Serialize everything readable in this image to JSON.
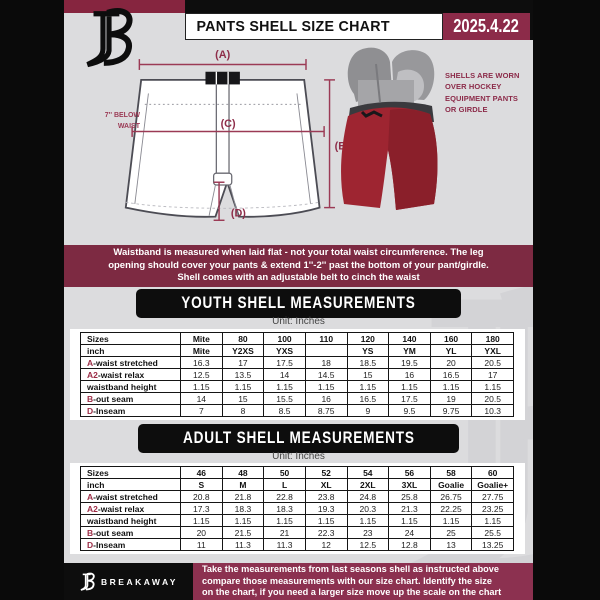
{
  "header": {
    "title": "PANTS SHELL SIZE CHART",
    "date": "2025.4.22"
  },
  "diagram": {
    "labels": {
      "a": "(A)",
      "b": "(B)",
      "c": "(C)",
      "d": "(D)"
    },
    "side_note_lines": [
      "7'' BELOW",
      "WAIST"
    ],
    "photo_note_lines": [
      "SHELLS ARE WORN",
      "OVER HOCKEY",
      "EQUIPMENT PANTS",
      "OR GIRDLE"
    ]
  },
  "notice": {
    "lines": [
      "Waistband is measured when laid flat - not your total waist circumference. The leg",
      "opening should cover your pants & extend 1''-2'' past the bottom of your pant/girdle.",
      "Shell comes with an adjustable belt to cinch the waist"
    ]
  },
  "youth": {
    "heading": "YOUTH SHELL MEASUREMENTS",
    "unit": "Unit: Inches",
    "table": {
      "rows": [
        {
          "label": {
            "prefix": "",
            "text": "Sizes"
          },
          "bold": true,
          "cells": [
            "Mite",
            "80",
            "100",
            "110",
            "120",
            "140",
            "160",
            "180"
          ]
        },
        {
          "label": {
            "prefix": "",
            "text": "inch"
          },
          "bold": true,
          "cells": [
            "Mite",
            "Y2XS",
            "YXS",
            "",
            "YS",
            "YM",
            "YL",
            "YXL"
          ]
        },
        {
          "label": {
            "prefix": "A",
            "text": "-waist stretched"
          },
          "cells": [
            "16.3",
            "17",
            "17.5",
            "18",
            "18.5",
            "19.5",
            "20",
            "20.5"
          ]
        },
        {
          "label": {
            "prefix": "A2",
            "text": "-waist relax"
          },
          "cells": [
            "12.5",
            "13.5",
            "14",
            "14.5",
            "15",
            "16",
            "16.5",
            "17"
          ]
        },
        {
          "label": {
            "prefix": "",
            "text": "waistband height"
          },
          "cells": [
            "1.15",
            "1.15",
            "1.15",
            "1.15",
            "1.15",
            "1.15",
            "1.15",
            "1.15"
          ]
        },
        {
          "label": {
            "prefix": "B",
            "text": "-out seam"
          },
          "cells": [
            "14",
            "15",
            "15.5",
            "16",
            "16.5",
            "17.5",
            "19",
            "20.5"
          ]
        },
        {
          "label": {
            "prefix": "D",
            "text": "-Inseam"
          },
          "cells": [
            "7",
            "8",
            "8.5",
            "8.75",
            "9",
            "9.5",
            "9.75",
            "10.3"
          ]
        }
      ]
    }
  },
  "adult": {
    "heading": "ADULT SHELL MEASUREMENTS",
    "unit": "Unit: Inches",
    "table": {
      "rows": [
        {
          "label": {
            "prefix": "",
            "text": "Sizes"
          },
          "bold": true,
          "cells": [
            "46",
            "48",
            "50",
            "52",
            "54",
            "56",
            "58",
            "60"
          ]
        },
        {
          "label": {
            "prefix": "",
            "text": "inch"
          },
          "bold": true,
          "cells": [
            "S",
            "M",
            "L",
            "XL",
            "2XL",
            "3XL",
            "Goalie",
            "Goalie+"
          ]
        },
        {
          "label": {
            "prefix": "A",
            "text": "-waist stretched"
          },
          "cells": [
            "20.8",
            "21.8",
            "22.8",
            "23.8",
            "24.8",
            "25.8",
            "26.75",
            "27.75"
          ]
        },
        {
          "label": {
            "prefix": "A2",
            "text": "-waist relax"
          },
          "cells": [
            "17.3",
            "18.3",
            "18.3",
            "19.3",
            "20.3",
            "21.3",
            "22.25",
            "23.25"
          ]
        },
        {
          "label": {
            "prefix": "",
            "text": "waistband height"
          },
          "cells": [
            "1.15",
            "1.15",
            "1.15",
            "1.15",
            "1.15",
            "1.15",
            "1.15",
            "1.15"
          ]
        },
        {
          "label": {
            "prefix": "B",
            "text": "-out seam"
          },
          "cells": [
            "20",
            "21.5",
            "21",
            "22.3",
            "23",
            "24",
            "25",
            "25.5"
          ]
        },
        {
          "label": {
            "prefix": "D",
            "text": "-Inseam"
          },
          "cells": [
            "11",
            "11.3",
            "11.3",
            "12",
            "12.5",
            "12.8",
            "13",
            "13.25"
          ]
        }
      ]
    }
  },
  "footer": {
    "brand": "BREAKAWAY",
    "lines": [
      "Take the measurements from last seasons shell as instructed above",
      "compare those measurements  with our size chart. Identify the size",
      "on the chart, if you need a larger size move up the scale on the chart"
    ]
  },
  "colors": {
    "maroon_strip": "#86253f",
    "maroon_notice": "#7d2a42",
    "maroon_date": "#8c2b49",
    "maroon_footer": "#8c3150",
    "shell_red": "#9e2531",
    "background_gray": "#dcdcde",
    "banner_black": "#0d0d0d"
  }
}
